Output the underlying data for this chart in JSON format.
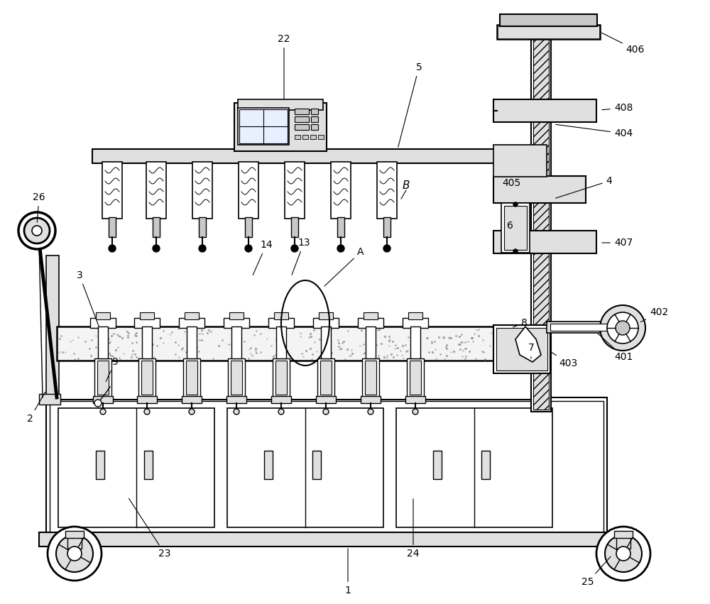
{
  "bg_color": "#ffffff",
  "lc": "#000000",
  "lgc": "#e0e0e0",
  "mgc": "#c8c8c8",
  "dgc": "#a0a0a0"
}
